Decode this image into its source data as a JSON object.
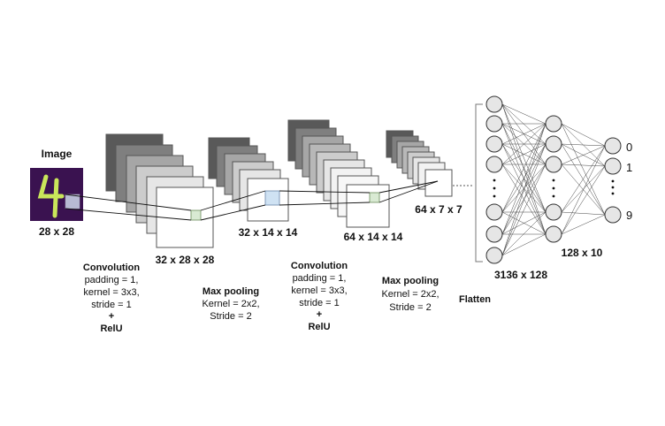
{
  "input": {
    "title": "Image",
    "shape": "28 x 28",
    "digit": "4"
  },
  "layers": {
    "conv1": {
      "shape": "32 x 28 x 28"
    },
    "pool1": {
      "shape": "32 x 14 x 14"
    },
    "conv2": {
      "shape": "64 x 14 x 14"
    },
    "pool2": {
      "shape": "64 x 7 x 7"
    },
    "fc1": {
      "shape": "3136 x 128"
    },
    "fc2": {
      "shape": "128 x 10"
    }
  },
  "ops": {
    "conv1": {
      "title": "Convolution",
      "lines": [
        "padding = 1,",
        "kernel = 3x3,",
        "stride = 1",
        "+"
      ],
      "activation": "RelU"
    },
    "pool1": {
      "title": "Max pooling",
      "lines": [
        "Kernel = 2x2,",
        "Stride = 2"
      ]
    },
    "conv2": {
      "title": "Convolution",
      "lines": [
        "padding = 1,",
        "kernel = 3x3,",
        "stride = 1",
        "+"
      ],
      "activation": "RelU"
    },
    "pool2": {
      "title": "Max pooling",
      "lines": [
        "Kernel = 2x2,",
        "Stride = 2"
      ]
    },
    "flatten": {
      "title": "Flatten"
    }
  },
  "outputs": {
    "first": "0",
    "second": "1",
    "last": "9"
  },
  "colors": {
    "image_bg": "#3a1250",
    "digit": "#c9e65a",
    "conv_highlight": "#d9ead3",
    "pool_highlight": "#cfe2f3",
    "node_fill": "#e6e6e6",
    "stack_shades": [
      "#595959",
      "#7f7f7f",
      "#a6a6a6",
      "#cccccc",
      "#e6e6e6",
      "#f7f7f7",
      "#ffffff"
    ]
  }
}
